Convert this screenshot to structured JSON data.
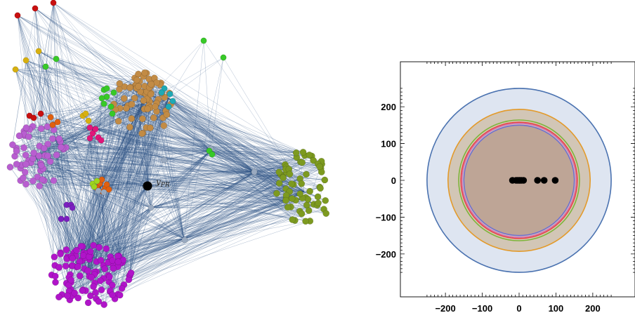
{
  "network": {
    "label_main": "y",
    "label_sub": "PR",
    "edge_color": "#2f5386",
    "communities": [
      {
        "name": "magenta",
        "color": "#b014c9",
        "size": 110
      },
      {
        "name": "purple",
        "color": "#b85ed0",
        "size": 55
      },
      {
        "name": "brown",
        "color": "#c28b45",
        "size": 70
      },
      {
        "name": "olive",
        "color": "#7d9a20",
        "size": 65
      },
      {
        "name": "green",
        "color": "#38c928",
        "size": 8
      },
      {
        "name": "teal",
        "color": "#1fa9b5",
        "size": 5
      },
      {
        "name": "red",
        "color": "#c81010",
        "size": 6
      },
      {
        "name": "gold",
        "color": "#d7b010",
        "size": 6
      },
      {
        "name": "orange",
        "color": "#e06010",
        "size": 10
      },
      {
        "name": "pink",
        "color": "#e0167a",
        "size": 6
      },
      {
        "name": "lime",
        "color": "#9ed51f",
        "size": 3
      },
      {
        "name": "grey",
        "color": "#9aaac0",
        "size": 7
      }
    ]
  },
  "chart_data": {
    "type": "scatter",
    "title": "",
    "xlabel": "",
    "ylabel": "",
    "xlim": [
      -260,
      260
    ],
    "ylim": [
      -260,
      260
    ],
    "xticks": [
      "−200",
      "−100",
      "0",
      "100",
      "200"
    ],
    "yticks": [
      "200",
      "100",
      "0",
      "−100",
      "−200"
    ],
    "circles": [
      {
        "r": 250,
        "color": "#4a72b0",
        "fill": "#c8d4e8"
      },
      {
        "r": 193,
        "color": "#e39a2a",
        "fill": "#c9b090"
      },
      {
        "r": 164,
        "color": "#7fb43a",
        "fill": "none"
      },
      {
        "r": 158,
        "color": "#e84a3a",
        "fill": "none"
      },
      {
        "r": 155,
        "color": "#d56ab0",
        "fill": "none"
      },
      {
        "r": 150,
        "color": "#6f6fd0",
        "fill": "#b09080"
      }
    ],
    "points": [
      {
        "x": -18,
        "y": 0
      },
      {
        "x": -8,
        "y": 0
      },
      {
        "x": -4,
        "y": 0
      },
      {
        "x": 0,
        "y": 0
      },
      {
        "x": 3,
        "y": 0
      },
      {
        "x": 7,
        "y": 0
      },
      {
        "x": 12,
        "y": 0
      },
      {
        "x": 50,
        "y": 0
      },
      {
        "x": 68,
        "y": 0
      },
      {
        "x": 98,
        "y": 0
      }
    ]
  }
}
